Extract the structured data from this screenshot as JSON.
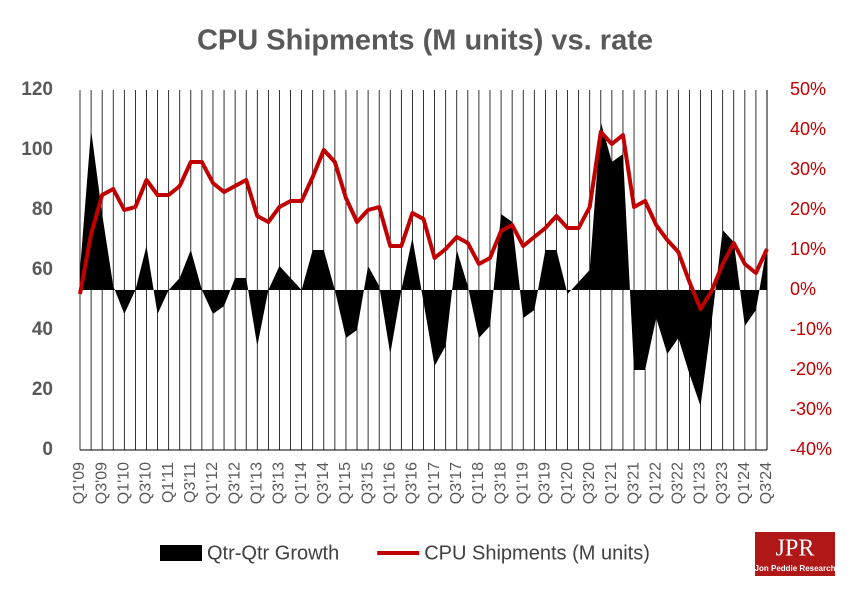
{
  "chart_data": {
    "type": "area-line",
    "title": "CPU Shipments (M units) vs. rate",
    "categories": [
      "Q1'09",
      null,
      "Q3'09",
      null,
      "Q1'10",
      null,
      "Q3'10",
      null,
      "Q1'11",
      null,
      "Q3'11",
      null,
      "Q1'12",
      null,
      "Q3'12",
      null,
      "Q1'13",
      null,
      "Q3'13",
      null,
      "Q1'14",
      null,
      "Q3'14",
      null,
      "Q1'15",
      null,
      "Q3'15",
      null,
      "Q1'16",
      null,
      "Q3'16",
      null,
      "Q1'17",
      null,
      "Q3'17",
      null,
      "Q1'18",
      null,
      "Q3'18",
      null,
      "Q1'19",
      null,
      "Q3'19",
      null,
      "Q1'20",
      null,
      "Q3'20",
      null,
      "Q1'21",
      null,
      "Q3'21",
      null,
      "Q1'22",
      null,
      "Q3'22",
      null,
      "Q1'23",
      null,
      "Q3'23",
      null,
      "Q1'24",
      null,
      "Q3'24"
    ],
    "series": [
      {
        "name": "Qtr-Qtr Growth",
        "type": "area",
        "axis": "y2",
        "color": "#000000",
        "values": [
          5,
          40,
          19,
          1,
          -6,
          0,
          11,
          -6,
          0,
          3,
          10,
          0,
          -6,
          -4,
          3,
          3,
          -14,
          0,
          6,
          3,
          0,
          10,
          10,
          0,
          -12,
          -10,
          6,
          1,
          -16,
          0,
          13,
          -3,
          -19,
          -14,
          10,
          1,
          -12,
          -9,
          19,
          17,
          -7,
          -5,
          10,
          10,
          -1,
          2,
          5,
          42,
          32,
          34,
          -20,
          -20,
          -7,
          -16,
          -12,
          -21,
          -29,
          -8,
          15,
          12,
          -9,
          -5,
          11
        ]
      },
      {
        "name": "CPU Shipments (M units)",
        "type": "line",
        "color": "#c00000",
        "values": [
          52,
          72,
          85,
          87,
          80,
          81,
          90,
          85,
          85,
          88,
          96,
          96,
          89,
          86,
          88,
          90,
          78,
          76,
          81,
          83,
          83,
          91,
          100,
          96,
          84,
          76,
          80,
          81,
          68,
          68,
          79,
          77,
          64,
          67,
          71,
          69,
          62,
          64,
          73,
          75,
          68,
          71,
          74,
          78,
          74,
          74,
          81,
          106,
          102,
          105,
          81,
          83,
          75,
          70,
          66,
          56,
          47,
          53,
          62,
          69,
          62,
          59,
          67
        ]
      }
    ],
    "ylim": [
      0,
      120
    ],
    "yticks": [
      0,
      20,
      40,
      60,
      80,
      100,
      120
    ],
    "y2lim": [
      -40,
      50
    ],
    "y2ticks": [
      {
        "value": -40,
        "label": "-40%"
      },
      {
        "value": -30,
        "label": "-30%"
      },
      {
        "value": -20,
        "label": "-20%"
      },
      {
        "value": -10,
        "label": "-10%"
      },
      {
        "value": 0,
        "label": "0%"
      },
      {
        "value": 10,
        "label": "10%"
      },
      {
        "value": 20,
        "label": "20%"
      },
      {
        "value": 30,
        "label": "30%"
      },
      {
        "value": 40,
        "label": "40%"
      },
      {
        "value": 50,
        "label": "50%"
      }
    ],
    "grid": "x",
    "legend": "bottom",
    "logo": {
      "title": "JPR",
      "subtitle": "Jon Peddie Research"
    }
  }
}
